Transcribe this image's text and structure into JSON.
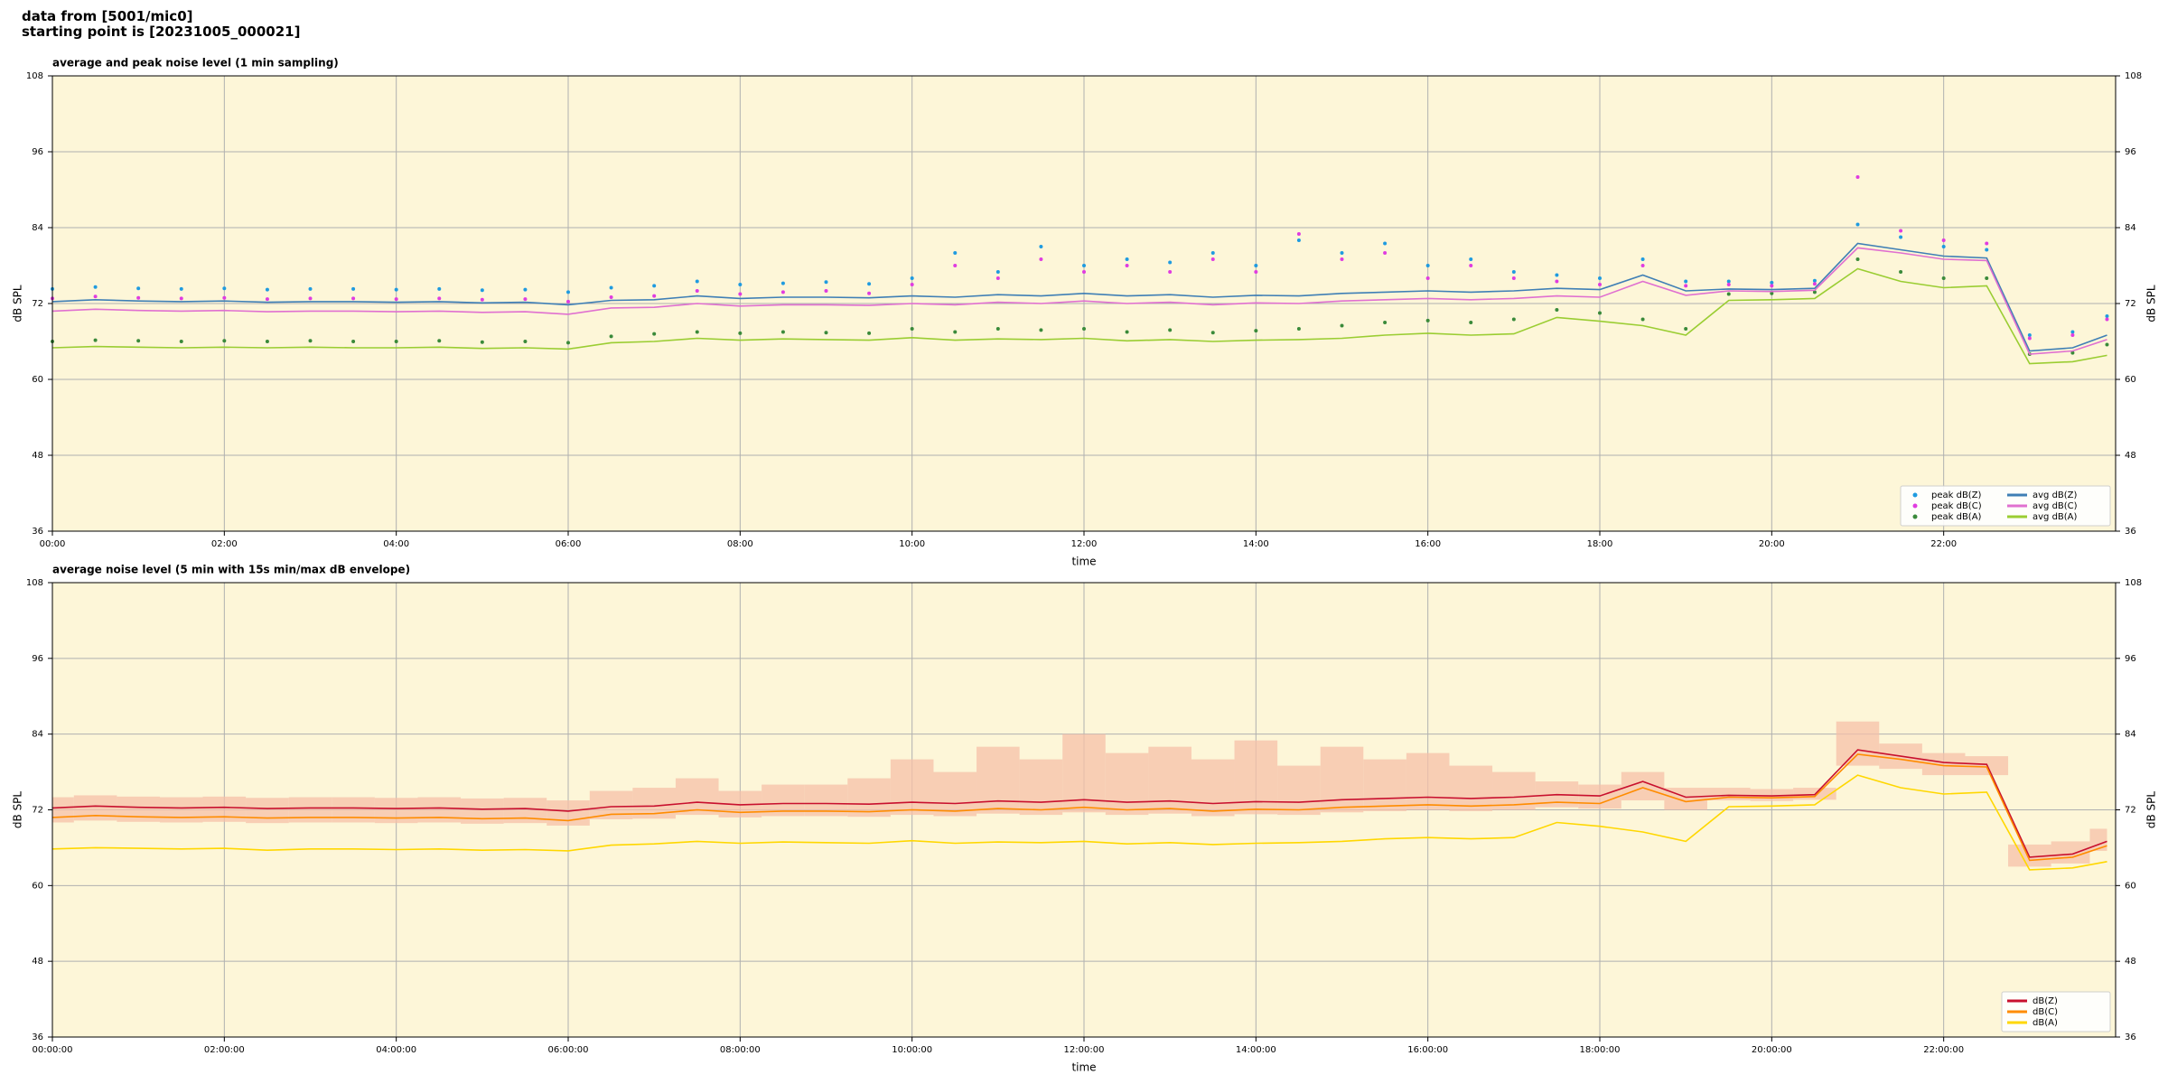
{
  "header": {
    "lines": [
      "data from [5001/mic0]",
      "starting point is [20231005_000021]"
    ]
  },
  "chart_data": [
    {
      "type": "line",
      "title": "average and peak noise level (1 min sampling)",
      "x_label": "time",
      "y_label": "dB SPL",
      "xlim": [
        0,
        24
      ],
      "ylim": [
        36,
        108
      ],
      "yticks": [
        36,
        48,
        60,
        72,
        84,
        96,
        108
      ],
      "xticks": [
        {
          "value": 0,
          "label": "00:00"
        },
        {
          "value": 2,
          "label": "02:00"
        },
        {
          "value": 4,
          "label": "04:00"
        },
        {
          "value": 6,
          "label": "06:00"
        },
        {
          "value": 8,
          "label": "08:00"
        },
        {
          "value": 10,
          "label": "10:00"
        },
        {
          "value": 12,
          "label": "12:00"
        },
        {
          "value": 14,
          "label": "14:00"
        },
        {
          "value": 16,
          "label": "16:00"
        },
        {
          "value": 18,
          "label": "18:00"
        },
        {
          "value": 20,
          "label": "20:00"
        },
        {
          "value": 22,
          "label": "22:00"
        }
      ],
      "grid": true,
      "facecolor": "#fdf6d8",
      "legend": "lower right",
      "legend_columns": 2,
      "x": [
        0,
        0.5,
        1,
        1.5,
        2,
        2.5,
        3,
        3.5,
        4,
        4.5,
        5,
        5.5,
        6,
        6.5,
        7,
        7.5,
        8,
        8.5,
        9,
        9.5,
        10,
        10.5,
        11,
        11.5,
        12,
        12.5,
        13,
        13.5,
        14,
        14.5,
        15,
        15.5,
        16,
        16.5,
        17,
        17.5,
        18,
        18.5,
        19,
        19.5,
        20,
        20.5,
        21,
        21.5,
        22,
        22.5,
        23,
        23.5,
        23.9
      ],
      "series": [
        {
          "name": "peak dB(Z)",
          "mark": "scatter",
          "color": "#1f9be0",
          "values": [
            74.3,
            74.6,
            74.4,
            74.3,
            74.4,
            74.2,
            74.3,
            74.3,
            74.2,
            74.3,
            74.1,
            74.2,
            73.8,
            74.5,
            74.8,
            75.5,
            75,
            75.2,
            75.4,
            75.1,
            76,
            80,
            77,
            81,
            78,
            79,
            78.5,
            80,
            78,
            82,
            80,
            81.5,
            78,
            79,
            77,
            76.5,
            76,
            79,
            75.5,
            75.5,
            75.3,
            75.6,
            84.5,
            82.5,
            81,
            80.5,
            67,
            67.5,
            70
          ]
        },
        {
          "name": "peak dB(C)",
          "mark": "scatter",
          "color": "#e03ce0",
          "values": [
            72.8,
            73.1,
            72.9,
            72.8,
            72.9,
            72.7,
            72.8,
            72.8,
            72.7,
            72.8,
            72.6,
            72.7,
            72.3,
            73,
            73.2,
            74,
            73.5,
            73.8,
            74,
            73.6,
            75,
            78,
            76,
            79,
            77,
            78,
            77,
            79,
            77,
            83,
            79,
            80,
            76,
            78,
            76,
            75.5,
            75,
            78,
            74.8,
            75,
            74.8,
            75.1,
            92,
            83.5,
            82,
            81.5,
            66.5,
            67,
            69.5
          ]
        },
        {
          "name": "peak dB(A)",
          "mark": "scatter",
          "color": "#3a8a3a",
          "values": [
            66,
            66.2,
            66.1,
            66,
            66.1,
            66,
            66.1,
            66,
            66,
            66.1,
            65.9,
            66,
            65.8,
            66.8,
            67.2,
            67.5,
            67.3,
            67.5,
            67.4,
            67.3,
            68,
            67.5,
            68,
            67.8,
            68,
            67.5,
            67.8,
            67.4,
            67.7,
            68,
            68.5,
            69,
            69.3,
            69,
            69.5,
            71,
            70.5,
            69.5,
            68,
            73.5,
            73.6,
            73.8,
            79,
            77,
            76,
            76,
            64,
            64.2,
            65.5
          ]
        },
        {
          "name": "avg dB(Z)",
          "mark": "line",
          "color": "#3f7fb5",
          "values": [
            72.3,
            72.6,
            72.4,
            72.3,
            72.4,
            72.2,
            72.3,
            72.3,
            72.2,
            72.3,
            72.1,
            72.2,
            71.8,
            72.5,
            72.6,
            73.2,
            72.8,
            73,
            73,
            72.9,
            73.2,
            73,
            73.4,
            73.2,
            73.6,
            73.2,
            73.4,
            73,
            73.3,
            73.2,
            73.6,
            73.8,
            74,
            73.8,
            74,
            74.4,
            74.2,
            76.5,
            74,
            74.3,
            74.2,
            74.4,
            81.5,
            80.5,
            79.5,
            79.2,
            64.5,
            65,
            67
          ]
        },
        {
          "name": "avg dB(C)",
          "mark": "line",
          "color": "#e070d0",
          "values": [
            70.8,
            71.1,
            70.9,
            70.8,
            70.9,
            70.7,
            70.8,
            70.8,
            70.7,
            70.8,
            70.6,
            70.7,
            70.3,
            71.3,
            71.4,
            72,
            71.6,
            71.8,
            71.8,
            71.7,
            72,
            71.8,
            72.2,
            72,
            72.4,
            72,
            72.2,
            71.8,
            72.1,
            72,
            72.4,
            72.6,
            72.8,
            72.6,
            72.8,
            73.2,
            73,
            75.5,
            73.3,
            74,
            73.9,
            74.1,
            80.8,
            80,
            79,
            78.8,
            64,
            64.5,
            66.3
          ]
        },
        {
          "name": "avg dB(A)",
          "mark": "line",
          "color": "#9acd32",
          "values": [
            65,
            65.2,
            65.1,
            65,
            65.1,
            65,
            65.1,
            65,
            65,
            65.1,
            64.9,
            65,
            64.8,
            65.8,
            66,
            66.5,
            66.2,
            66.4,
            66.3,
            66.2,
            66.6,
            66.2,
            66.4,
            66.3,
            66.5,
            66.1,
            66.3,
            66,
            66.2,
            66.3,
            66.5,
            67,
            67.3,
            67,
            67.2,
            69.8,
            69.2,
            68.5,
            67,
            72.5,
            72.6,
            72.8,
            77.5,
            75.5,
            74.5,
            74.8,
            62.5,
            62.8,
            63.8
          ]
        }
      ]
    },
    {
      "type": "line",
      "title": "average noise level (5 min with 15s min/max dB envelope)",
      "x_label": "time",
      "y_label": "dB SPL",
      "xlim": [
        0,
        24
      ],
      "ylim": [
        36,
        108
      ],
      "yticks": [
        36,
        48,
        60,
        72,
        84,
        96,
        108
      ],
      "xticks": [
        {
          "value": 0,
          "label": "00:00:00"
        },
        {
          "value": 2,
          "label": "02:00:00"
        },
        {
          "value": 4,
          "label": "04:00:00"
        },
        {
          "value": 6,
          "label": "06:00:00"
        },
        {
          "value": 8,
          "label": "08:00:00"
        },
        {
          "value": 10,
          "label": "10:00:00"
        },
        {
          "value": 12,
          "label": "12:00:00"
        },
        {
          "value": 14,
          "label": "14:00:00"
        },
        {
          "value": 16,
          "label": "16:00:00"
        },
        {
          "value": 18,
          "label": "18:00:00"
        },
        {
          "value": 20,
          "label": "20:00:00"
        },
        {
          "value": 22,
          "label": "22:00:00"
        }
      ],
      "grid": true,
      "facecolor": "#fdf6d8",
      "legend": "lower right",
      "legend_columns": 1,
      "x": [
        0,
        0.5,
        1,
        1.5,
        2,
        2.5,
        3,
        3.5,
        4,
        4.5,
        5,
        5.5,
        6,
        6.5,
        7,
        7.5,
        8,
        8.5,
        9,
        9.5,
        10,
        10.5,
        11,
        11.5,
        12,
        12.5,
        13,
        13.5,
        14,
        14.5,
        15,
        15.5,
        16,
        16.5,
        17,
        17.5,
        18,
        18.5,
        19,
        19.5,
        20,
        20.5,
        21,
        21.5,
        22,
        22.5,
        23,
        23.5,
        23.9
      ],
      "series": [
        {
          "name": "dB(Z)",
          "mark": "line",
          "color": "#c8102e",
          "envelope_color": "#f6c0a8",
          "min": [
            70,
            70.3,
            70.1,
            70,
            70.1,
            69.9,
            70,
            70,
            69.9,
            70,
            69.8,
            69.9,
            69.5,
            70.5,
            70.6,
            71.2,
            70.8,
            71,
            71,
            70.9,
            71.2,
            71,
            71.4,
            71.2,
            71.6,
            71.2,
            71.4,
            71,
            71.3,
            71.2,
            71.6,
            71.8,
            72,
            71.8,
            72,
            72.4,
            72.2,
            73.5,
            72,
            73.5,
            73.4,
            73.6,
            79,
            78.5,
            77.5,
            77.5,
            63,
            63.5,
            65.5
          ],
          "max": [
            74,
            74.3,
            74.1,
            74,
            74.1,
            73.9,
            74,
            74,
            73.9,
            74,
            73.8,
            73.9,
            73.5,
            75,
            75.5,
            77,
            75,
            76,
            76,
            77,
            80,
            78,
            82,
            80,
            84,
            81,
            82,
            80,
            83,
            79,
            82,
            80,
            81,
            79,
            78,
            76.5,
            76,
            78,
            75.5,
            75.5,
            75.3,
            75.5,
            86,
            82.5,
            81,
            80.5,
            66.5,
            67,
            69
          ],
          "values": [
            72.3,
            72.6,
            72.4,
            72.3,
            72.4,
            72.2,
            72.3,
            72.3,
            72.2,
            72.3,
            72.1,
            72.2,
            71.8,
            72.5,
            72.6,
            73.2,
            72.8,
            73,
            73,
            72.9,
            73.2,
            73,
            73.4,
            73.2,
            73.6,
            73.2,
            73.4,
            73,
            73.3,
            73.2,
            73.6,
            73.8,
            74,
            73.8,
            74,
            74.4,
            74.2,
            76.5,
            74,
            74.3,
            74.2,
            74.4,
            81.5,
            80.5,
            79.5,
            79.2,
            64.5,
            65,
            67
          ]
        },
        {
          "name": "dB(C)",
          "mark": "line",
          "color": "#ff8c00",
          "values": [
            70.8,
            71.1,
            70.9,
            70.8,
            70.9,
            70.7,
            70.8,
            70.8,
            70.7,
            70.8,
            70.6,
            70.7,
            70.3,
            71.3,
            71.4,
            72,
            71.6,
            71.8,
            71.8,
            71.7,
            72,
            71.8,
            72.2,
            72,
            72.4,
            72,
            72.2,
            71.8,
            72.1,
            72,
            72.4,
            72.6,
            72.8,
            72.6,
            72.8,
            73.2,
            73,
            75.5,
            73.3,
            74,
            73.9,
            74.1,
            80.8,
            80,
            79,
            78.8,
            64,
            64.5,
            66.3
          ]
        },
        {
          "name": "dB(A)",
          "mark": "line",
          "color": "#ffd700",
          "values": [
            65.8,
            66,
            65.9,
            65.8,
            65.9,
            65.6,
            65.8,
            65.8,
            65.7,
            65.8,
            65.6,
            65.7,
            65.5,
            66.4,
            66.6,
            67,
            66.7,
            66.9,
            66.8,
            66.7,
            67.1,
            66.7,
            66.9,
            66.8,
            67,
            66.6,
            66.8,
            66.5,
            66.7,
            66.8,
            67,
            67.4,
            67.6,
            67.4,
            67.6,
            70,
            69.4,
            68.5,
            67,
            72.5,
            72.6,
            72.8,
            77.5,
            75.5,
            74.5,
            74.8,
            62.5,
            62.8,
            63.8
          ]
        }
      ]
    }
  ]
}
